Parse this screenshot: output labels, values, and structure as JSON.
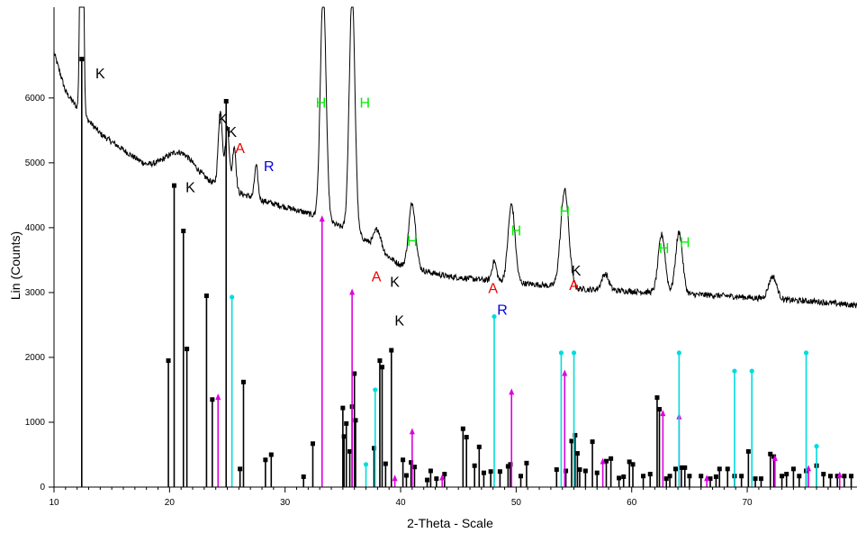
{
  "chart_data": {
    "type": "line",
    "title": "",
    "xlabel": "2-Theta - Scale",
    "ylabel": "Lin (Counts)",
    "xlim": [
      10,
      79.5
    ],
    "ylim": [
      0,
      7400
    ],
    "x_ticks": [
      "10",
      "20",
      "30",
      "40",
      "50",
      "60",
      "70"
    ],
    "y_ticks": [
      "0",
      "1000",
      "2000",
      "3000",
      "4000",
      "5000",
      "6000"
    ],
    "grid": false,
    "legend": "none",
    "colors": {
      "pattern": "#000000",
      "K": "#000000",
      "H": "#00ee00",
      "A": "#ee0000",
      "R": "#0000dd",
      "magenta": "#dd00dd",
      "cyan": "#00dddd"
    },
    "diffractogram": {
      "baseline": [
        [
          10,
          6700
        ],
        [
          11,
          6100
        ],
        [
          12,
          5850
        ],
        [
          14,
          5450
        ],
        [
          16,
          5200
        ],
        [
          18,
          4950
        ],
        [
          20,
          4820
        ],
        [
          24,
          4650
        ],
        [
          28,
          4420
        ],
        [
          32,
          4220
        ],
        [
          36,
          3930
        ],
        [
          40,
          3420
        ],
        [
          44,
          3250
        ],
        [
          48,
          3180
        ],
        [
          52,
          3120
        ],
        [
          56,
          3050
        ],
        [
          60,
          3020
        ],
        [
          64,
          2980
        ],
        [
          68,
          2950
        ],
        [
          72,
          2900
        ],
        [
          76,
          2860
        ],
        [
          79.5,
          2800
        ]
      ],
      "peaks": [
        [
          12.4,
          7300,
          0.12
        ],
        [
          20.9,
          380,
          1.3
        ],
        [
          24.4,
          1150,
          0.18
        ],
        [
          25.0,
          950,
          0.18
        ],
        [
          25.6,
          700,
          0.15
        ],
        [
          27.5,
          500,
          0.15
        ],
        [
          33.3,
          3500,
          0.25
        ],
        [
          35.8,
          3650,
          0.25
        ],
        [
          38.0,
          300,
          0.3
        ],
        [
          41.0,
          1000,
          0.3
        ],
        [
          48.1,
          300,
          0.2
        ],
        [
          49.6,
          1200,
          0.3
        ],
        [
          54.2,
          1500,
          0.35
        ],
        [
          57.7,
          250,
          0.3
        ],
        [
          62.6,
          900,
          0.3
        ],
        [
          64.1,
          950,
          0.3
        ],
        [
          72.2,
          350,
          0.35
        ]
      ]
    },
    "annotations": [
      {
        "text": "K",
        "x": 14.0,
        "y": 6300,
        "class": "K"
      },
      {
        "text": "K",
        "x": 21.8,
        "y": 4550,
        "class": "K"
      },
      {
        "text": "K",
        "x": 24.6,
        "y": 5600,
        "class": "K"
      },
      {
        "text": "K",
        "x": 25.4,
        "y": 5400,
        "class": "K"
      },
      {
        "text": "A",
        "x": 26.1,
        "y": 5150,
        "class": "A"
      },
      {
        "text": "R",
        "x": 28.6,
        "y": 4870,
        "class": "R"
      },
      {
        "text": "H",
        "x": 33.1,
        "y": 5850,
        "class": "H"
      },
      {
        "text": "H",
        "x": 36.9,
        "y": 5850,
        "class": "H"
      },
      {
        "text": "H",
        "x": 41.0,
        "y": 3720,
        "class": "H"
      },
      {
        "text": "A",
        "x": 37.9,
        "y": 3170,
        "class": "A"
      },
      {
        "text": "K",
        "x": 39.5,
        "y": 3090,
        "class": "K"
      },
      {
        "text": "K",
        "x": 39.9,
        "y": 2490,
        "class": "K"
      },
      {
        "text": "R",
        "x": 48.8,
        "y": 2660,
        "class": "R"
      },
      {
        "text": "A",
        "x": 48.0,
        "y": 2990,
        "class": "A"
      },
      {
        "text": "H",
        "x": 50.0,
        "y": 3880,
        "class": "H"
      },
      {
        "text": "H",
        "x": 54.2,
        "y": 4180,
        "class": "H"
      },
      {
        "text": "K",
        "x": 55.2,
        "y": 3260,
        "class": "K"
      },
      {
        "text": "A",
        "x": 55.0,
        "y": 3040,
        "class": "A"
      },
      {
        "text": "H",
        "x": 62.8,
        "y": 3610,
        "class": "H"
      },
      {
        "text": "H",
        "x": 64.6,
        "y": 3700,
        "class": "H"
      }
    ],
    "reference_lines": {
      "black": [
        [
          12.4,
          6600
        ],
        [
          19.9,
          1950
        ],
        [
          20.4,
          4650
        ],
        [
          21.2,
          3950
        ],
        [
          21.5,
          2130
        ],
        [
          23.2,
          2950
        ],
        [
          23.7,
          1350
        ],
        [
          24.9,
          5950
        ],
        [
          26.1,
          280
        ],
        [
          26.4,
          1620
        ],
        [
          28.3,
          420
        ],
        [
          28.8,
          500
        ],
        [
          31.6,
          160
        ],
        [
          32.4,
          670
        ],
        [
          35.0,
          1220
        ],
        [
          35.1,
          780
        ],
        [
          35.3,
          980
        ],
        [
          35.6,
          550
        ],
        [
          35.8,
          1240
        ],
        [
          36.0,
          1750
        ],
        [
          36.1,
          1030
        ],
        [
          38.2,
          1950
        ],
        [
          38.4,
          1850
        ],
        [
          39.2,
          2110
        ],
        [
          37.7,
          600
        ],
        [
          38.7,
          360
        ],
        [
          40.2,
          420
        ],
        [
          40.5,
          180
        ],
        [
          40.9,
          380
        ],
        [
          41.2,
          310
        ],
        [
          42.3,
          110
        ],
        [
          42.6,
          250
        ],
        [
          43.1,
          130
        ],
        [
          43.8,
          200
        ],
        [
          45.4,
          900
        ],
        [
          45.7,
          770
        ],
        [
          46.4,
          330
        ],
        [
          46.8,
          620
        ],
        [
          47.2,
          220
        ],
        [
          47.8,
          240
        ],
        [
          48.6,
          240
        ],
        [
          49.3,
          320
        ],
        [
          49.5,
          350
        ],
        [
          50.4,
          170
        ],
        [
          50.9,
          370
        ],
        [
          53.5,
          270
        ],
        [
          54.3,
          250
        ],
        [
          54.8,
          710
        ],
        [
          55.1,
          800
        ],
        [
          55.3,
          520
        ],
        [
          55.5,
          270
        ],
        [
          56.0,
          250
        ],
        [
          56.6,
          700
        ],
        [
          57.0,
          220
        ],
        [
          57.8,
          400
        ],
        [
          58.2,
          440
        ],
        [
          58.9,
          140
        ],
        [
          59.3,
          160
        ],
        [
          59.8,
          390
        ],
        [
          60.1,
          350
        ],
        [
          61.0,
          170
        ],
        [
          61.6,
          200
        ],
        [
          62.2,
          1380
        ],
        [
          62.4,
          1200
        ],
        [
          63.0,
          130
        ],
        [
          63.3,
          170
        ],
        [
          63.8,
          280
        ],
        [
          64.3,
          300
        ],
        [
          64.6,
          300
        ],
        [
          65.0,
          170
        ],
        [
          66.0,
          170
        ],
        [
          66.8,
          130
        ],
        [
          67.3,
          160
        ],
        [
          67.6,
          280
        ],
        [
          68.3,
          280
        ],
        [
          68.9,
          170
        ],
        [
          69.5,
          170
        ],
        [
          70.1,
          550
        ],
        [
          70.7,
          130
        ],
        [
          71.2,
          130
        ],
        [
          72.0,
          510
        ],
        [
          72.3,
          470
        ],
        [
          73.0,
          170
        ],
        [
          73.4,
          200
        ],
        [
          74.0,
          280
        ],
        [
          74.5,
          170
        ],
        [
          75.1,
          250
        ],
        [
          76.0,
          330
        ],
        [
          76.6,
          200
        ],
        [
          77.2,
          170
        ],
        [
          77.8,
          170
        ],
        [
          78.4,
          170
        ],
        [
          79.0,
          170
        ]
      ],
      "magenta": [
        [
          24.2,
          1400
        ],
        [
          33.2,
          4150
        ],
        [
          35.8,
          3020
        ],
        [
          39.5,
          150
        ],
        [
          41.0,
          870
        ],
        [
          43.6,
          160
        ],
        [
          49.6,
          1480
        ],
        [
          54.2,
          1770
        ],
        [
          57.5,
          410
        ],
        [
          62.7,
          1150
        ],
        [
          64.1,
          1100
        ],
        [
          66.5,
          150
        ],
        [
          72.4,
          460
        ],
        [
          75.3,
          300
        ],
        [
          78.0,
          200
        ]
      ],
      "cyan": [
        [
          25.4,
          2930
        ],
        [
          37.0,
          350
        ],
        [
          37.8,
          1500
        ],
        [
          48.1,
          2630
        ],
        [
          53.9,
          2070
        ],
        [
          55.0,
          2070
        ],
        [
          64.1,
          2070
        ],
        [
          68.9,
          1790
        ],
        [
          70.4,
          1790
        ],
        [
          75.1,
          2070
        ],
        [
          76.0,
          630
        ]
      ]
    }
  }
}
